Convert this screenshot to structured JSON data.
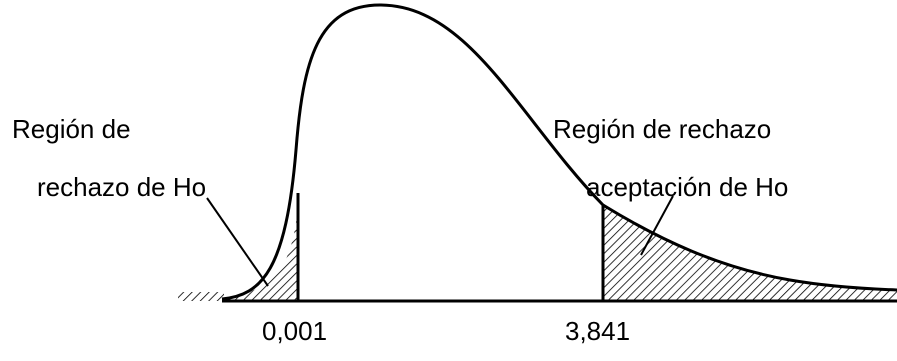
{
  "labels": {
    "left_region_line1": "Región de",
    "left_region_line2": "rechazo de Ho",
    "right_region_line1": "Región de rechazo",
    "right_region_line2": "aceptación de  Ho",
    "critical_lower": "0,001",
    "critical_upper": "3,841"
  },
  "colors": {
    "line": "#000000",
    "background": "#ffffff"
  }
}
